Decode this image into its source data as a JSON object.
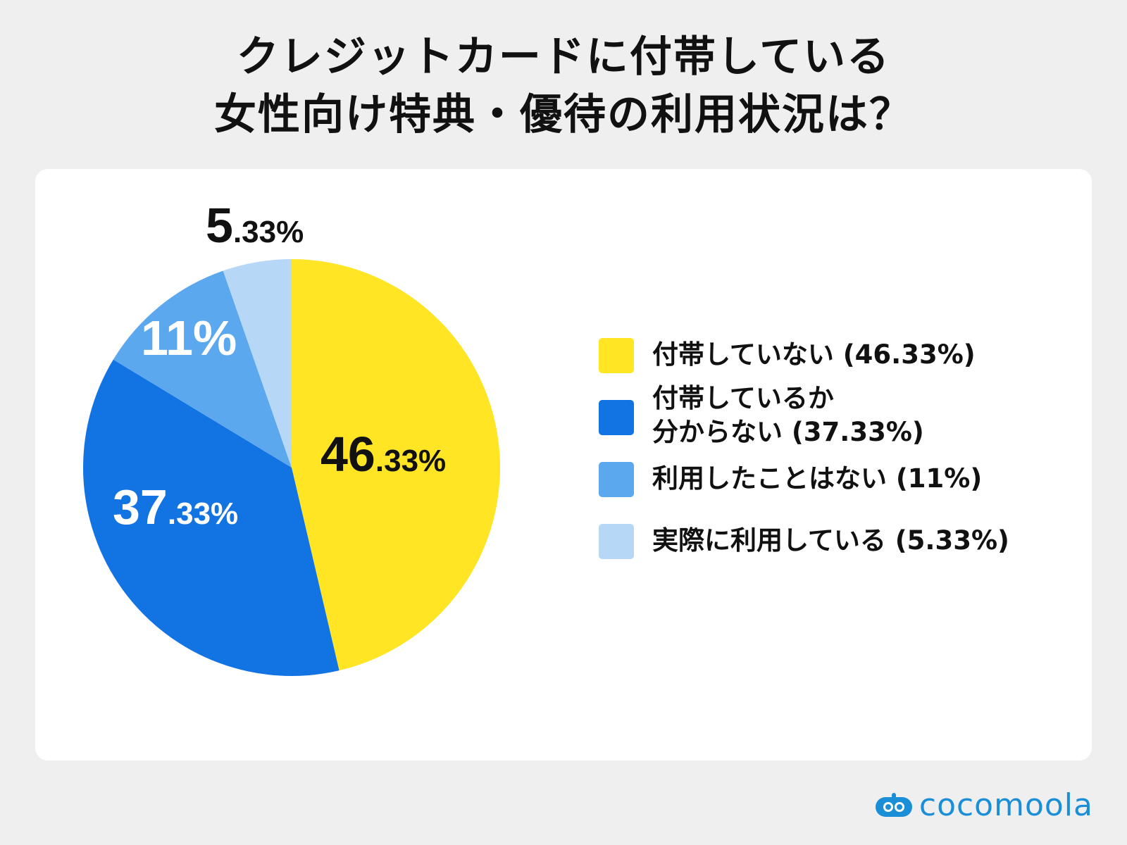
{
  "title_line1": "クレジットカードに付帯している",
  "title_line2": "女性向け特典・優待の利用状況は？",
  "chart_data": {
    "type": "pie",
    "start_angle": "12 o'clock, clockwise",
    "slices": [
      {
        "label": "付帯していない",
        "value": 46.33,
        "display_int": "46",
        "display_dec": ".33%",
        "color": "#ffe524",
        "label_color": "#111111",
        "legend": "付帯していない (46.33%)"
      },
      {
        "label": "付帯しているか分からない",
        "value": 37.33,
        "display_int": "37",
        "display_dec": ".33%",
        "color": "#1273e3",
        "label_color": "#ffffff",
        "legend_line1": "付帯しているか",
        "legend_line2": "分からない (37.33%)"
      },
      {
        "label": "利用したことはない",
        "value": 11,
        "display_int": "11%",
        "display_dec": "",
        "color": "#5ca8ef",
        "label_color": "#ffffff",
        "legend": "利用したことはない (11%)"
      },
      {
        "label": "実際に利用している",
        "value": 5.33,
        "display_int": "5",
        "display_dec": ".33%",
        "color": "#b7d7f7",
        "label_color": "#111111",
        "legend": "実際に利用している (5.33%)"
      }
    ]
  },
  "brand": {
    "name": "cocomoola",
    "color": "#1a8fd8",
    "icon": "robot-face-icon"
  }
}
